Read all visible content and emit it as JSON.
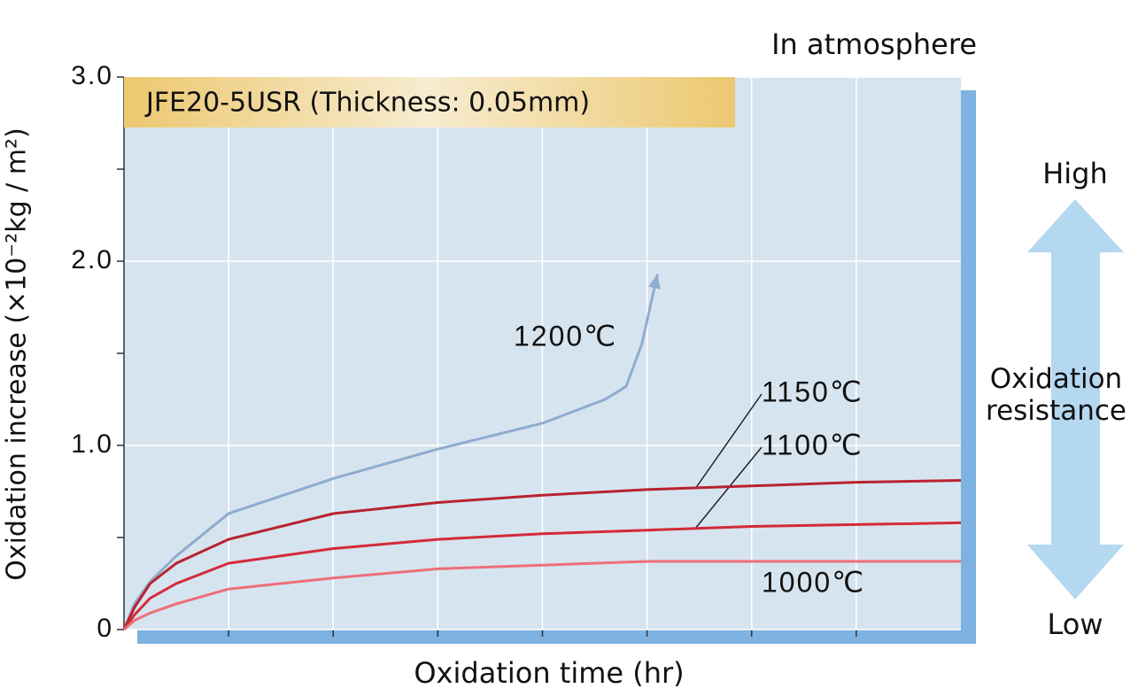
{
  "chart_data": {
    "type": "line",
    "annotation": "In atmosphere",
    "box_label": "JFE20-5USR (Thickness: 0.05mm)",
    "y_label": "Oxidation increase (×10⁻²kg / m²)",
    "x_label": "Oxidation time (hr)",
    "scale_top": "High",
    "scale_label": "Oxidation resistance",
    "scale_bottom": "Low",
    "xlim": [
      0,
      8
    ],
    "ylim": [
      0,
      3
    ],
    "yticks": [
      0,
      {
        "value": 1,
        "label": "1.0"
      },
      {
        "value": 2,
        "label": "2.0"
      },
      {
        "value": 3,
        "label": "3.0"
      }
    ],
    "grid": true,
    "series": [
      {
        "name": "1200℃",
        "color": "#8eaccd",
        "x": [
          0,
          0.1,
          0.25,
          0.5,
          1,
          2,
          3,
          4,
          4.6,
          4.8,
          4.95,
          5.1
        ],
        "values": [
          0,
          0.14,
          0.26,
          0.4,
          0.63,
          0.82,
          0.98,
          1.12,
          1.25,
          1.32,
          1.55,
          1.93
        ]
      },
      {
        "name": "1150℃",
        "color": "#b8232f",
        "x": [
          0,
          0.1,
          0.25,
          0.5,
          1,
          2,
          3,
          4,
          5,
          6,
          7,
          8
        ],
        "values": [
          0,
          0.12,
          0.25,
          0.36,
          0.49,
          0.63,
          0.69,
          0.73,
          0.76,
          0.78,
          0.8,
          0.81
        ]
      },
      {
        "name": "1100℃",
        "color": "#d42a3a",
        "x": [
          0,
          0.1,
          0.25,
          0.5,
          1,
          2,
          3,
          4,
          5,
          6,
          7,
          8
        ],
        "values": [
          0,
          0.08,
          0.17,
          0.25,
          0.36,
          0.44,
          0.49,
          0.52,
          0.54,
          0.56,
          0.57,
          0.58
        ]
      },
      {
        "name": "1000℃",
        "color": "#ec6f78",
        "x": [
          0,
          0.1,
          0.25,
          0.5,
          1,
          2,
          3,
          4,
          5,
          6,
          7,
          8
        ],
        "values": [
          0,
          0.05,
          0.09,
          0.14,
          0.22,
          0.28,
          0.33,
          0.35,
          0.37,
          0.37,
          0.37,
          0.37
        ]
      }
    ]
  }
}
